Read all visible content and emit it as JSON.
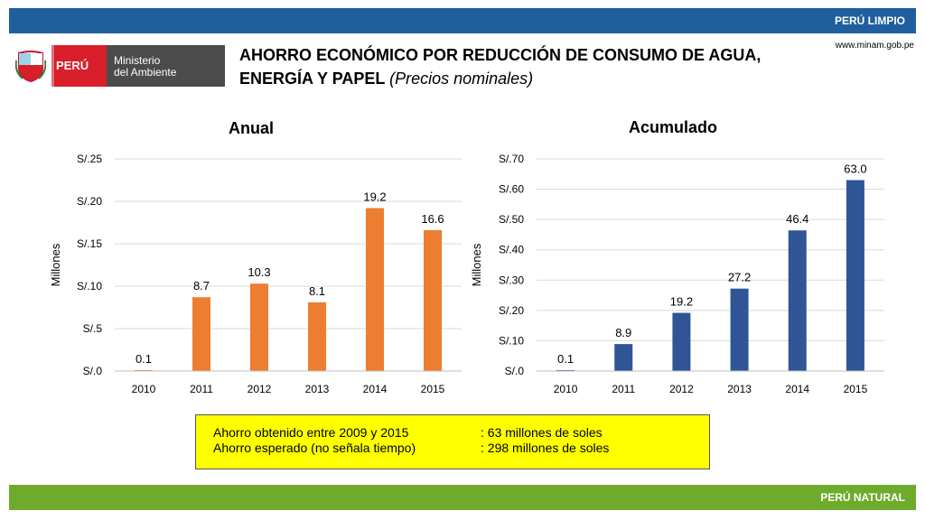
{
  "header": {
    "band_label": "PERÚ LIMPIO",
    "url": "www.minam.gob.pe"
  },
  "footer": {
    "band_label": "PERÚ NATURAL"
  },
  "logo": {
    "country": "PERÚ",
    "ministry_line1": "Ministerio",
    "ministry_line2": "del Ambiente"
  },
  "title": {
    "main_line1": "AHORRO ECONÓMICO POR REDUCCIÓN DE CONSUMO DE AGUA,",
    "main_line2": "ENERGÍA Y PAPEL",
    "subtitle": "(Precios nominales)"
  },
  "colors": {
    "top_band": "#1f5f9e",
    "bottom_band": "#6eab2c",
    "annual_bar": "#ed7d31",
    "cumulative_bar": "#2f5597",
    "note_bg": "#ffff00"
  },
  "chart_data": [
    {
      "type": "bar",
      "title": "Anual",
      "ylabel": "Millones",
      "xlabel": "",
      "categories": [
        "2010",
        "2011",
        "2012",
        "2013",
        "2014",
        "2015"
      ],
      "values": [
        0.1,
        8.7,
        10.3,
        8.1,
        19.2,
        16.6
      ],
      "value_labels": [
        "0.1",
        "8.7",
        "10.3",
        "8.1",
        "19.2",
        "16.6"
      ],
      "ylim": [
        0,
        25
      ],
      "ytick_values": [
        0,
        5,
        10,
        15,
        20,
        25
      ],
      "ytick_labels": [
        "S/.0",
        "S/.5",
        "S/.10",
        "S/.15",
        "S/.20",
        "S/.25"
      ],
      "grid": true
    },
    {
      "type": "bar",
      "title": "Acumulado",
      "ylabel": "Millones",
      "xlabel": "",
      "categories": [
        "2010",
        "2011",
        "2012",
        "2013",
        "2014",
        "2015"
      ],
      "values": [
        0.1,
        8.9,
        19.2,
        27.2,
        46.4,
        63.0
      ],
      "value_labels": [
        "0.1",
        "8.9",
        "19.2",
        "27.2",
        "46.4",
        "63.0"
      ],
      "ylim": [
        0,
        70
      ],
      "ytick_values": [
        0,
        10,
        20,
        30,
        40,
        50,
        60,
        70
      ],
      "ytick_labels": [
        "S/.0",
        "S/.10",
        "S/.20",
        "S/.30",
        "S/.40",
        "S/.50",
        "S/.60",
        "S/.70"
      ],
      "grid": true
    }
  ],
  "note": {
    "row1_label": "Ahorro obtenido entre 2009 y 2015",
    "row1_value": ": 63 millones de soles",
    "row2_label": "Ahorro esperado (no señala tiempo)",
    "row2_value": ": 298 millones de soles"
  }
}
